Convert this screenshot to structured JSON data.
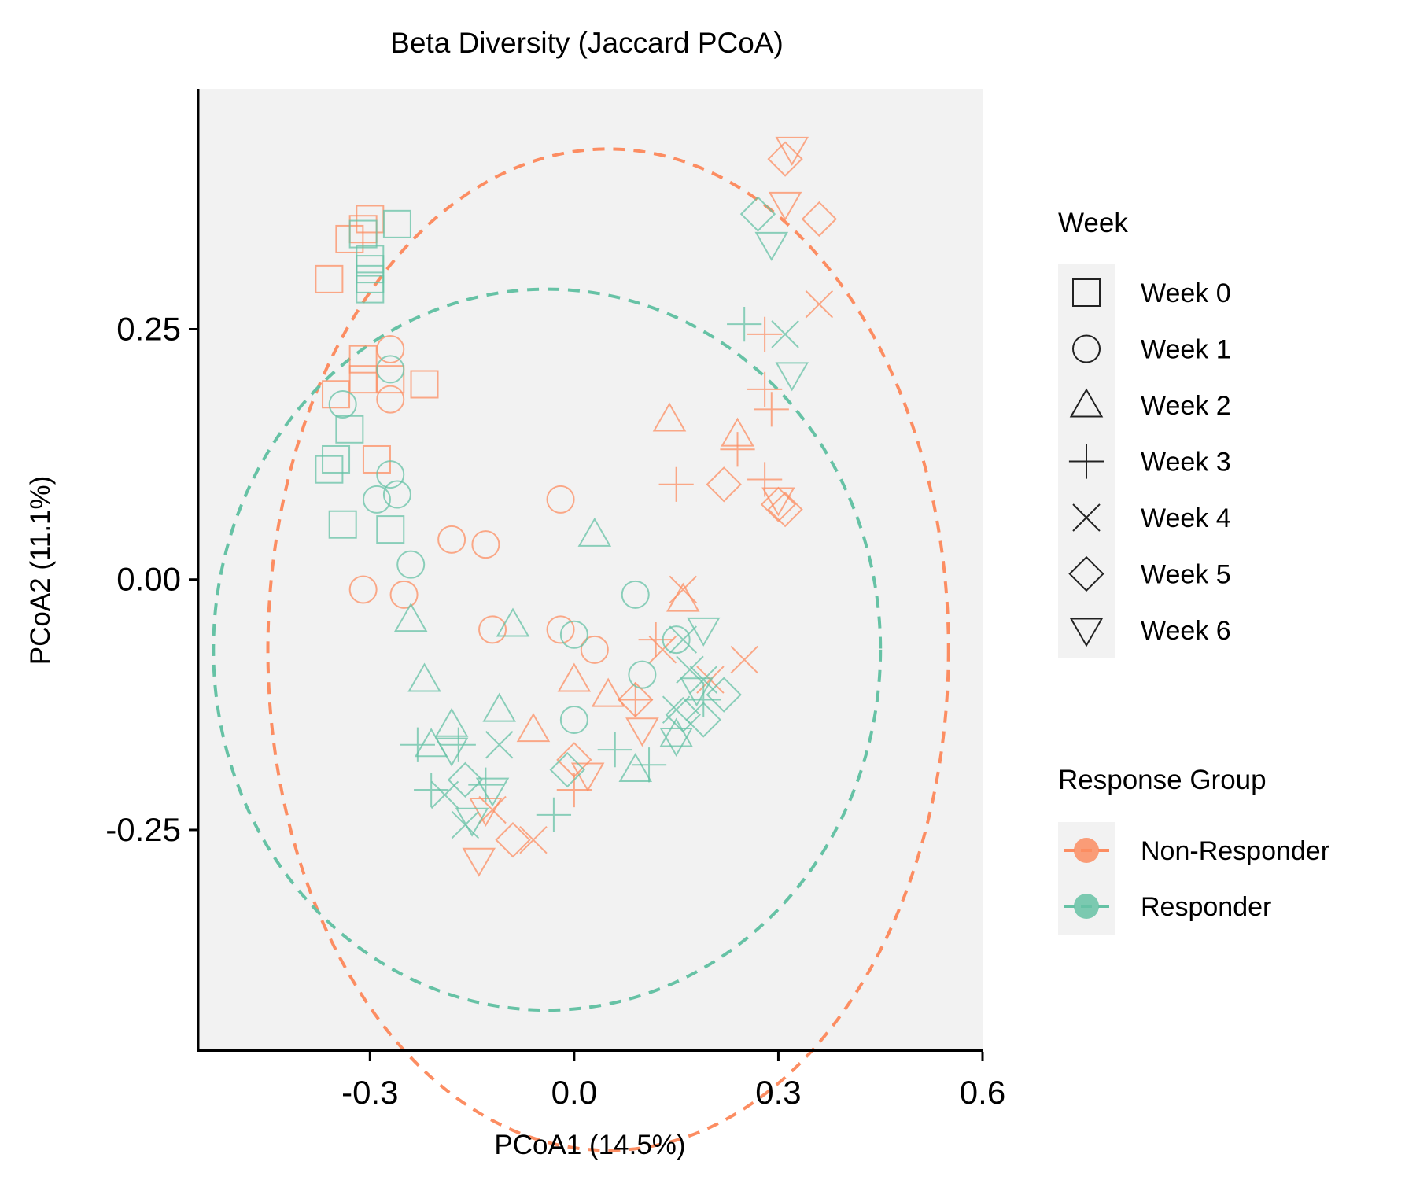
{
  "chart_data": {
    "type": "scatter",
    "title": "Beta Diversity (Jaccard PCoA)",
    "xlabel": "PCoA1 (14.5%)",
    "ylabel": "PCoA2 (11.1%)",
    "xlim": [
      -0.55,
      0.6
    ],
    "ylim": [
      -0.47,
      0.49
    ],
    "x_ticks": [
      -0.3,
      0.0,
      0.3,
      0.6
    ],
    "x_tick_labels": [
      "-0.3",
      "0.0",
      "0.3",
      "0.6"
    ],
    "y_ticks": [
      -0.25,
      0.0,
      0.25
    ],
    "y_tick_labels": [
      "-0.25",
      "0.00",
      "0.25"
    ],
    "grid": false,
    "panel_background": "#f2f2f2",
    "legend_placement": "right",
    "legends": {
      "week": {
        "title": "Week",
        "entries": [
          {
            "label": "Week 0",
            "shape": "square"
          },
          {
            "label": "Week 1",
            "shape": "circle"
          },
          {
            "label": "Week 2",
            "shape": "triangle-up"
          },
          {
            "label": "Week 3",
            "shape": "plus"
          },
          {
            "label": "Week 4",
            "shape": "cross"
          },
          {
            "label": "Week 5",
            "shape": "diamond"
          },
          {
            "label": "Week 6",
            "shape": "triangle-down"
          }
        ]
      },
      "group": {
        "title": "Response Group",
        "entries": [
          {
            "label": "Non-Responder",
            "color": "#fc8d62"
          },
          {
            "label": "Responder",
            "color": "#66c2a5"
          }
        ]
      }
    },
    "ellipses": [
      {
        "group": "Non-Responder",
        "center": [
          0.05,
          -0.07
        ],
        "rx": 0.5,
        "ry": 0.5,
        "color": "#fc8d62",
        "style": "dashed"
      },
      {
        "group": "Responder",
        "center": [
          -0.04,
          -0.07
        ],
        "rx": 0.49,
        "ry": 0.36,
        "color": "#66c2a5",
        "style": "dashed"
      }
    ],
    "series": [
      {
        "name": "Non-Responder",
        "color": "#fc8d62",
        "points": [
          [
            -0.31,
            0.35,
            0
          ],
          [
            -0.3,
            0.36,
            0
          ],
          [
            -0.33,
            0.34,
            0
          ],
          [
            -0.36,
            0.3,
            0
          ],
          [
            -0.31,
            0.22,
            0
          ],
          [
            -0.31,
            0.2,
            0
          ],
          [
            -0.27,
            0.2,
            0
          ],
          [
            -0.22,
            0.195,
            0
          ],
          [
            -0.35,
            0.185,
            0
          ],
          [
            -0.29,
            0.12,
            0
          ],
          [
            -0.27,
            0.23,
            1
          ],
          [
            -0.27,
            0.18,
            1
          ],
          [
            -0.31,
            -0.01,
            1
          ],
          [
            -0.25,
            -0.015,
            1
          ],
          [
            -0.18,
            0.04,
            1
          ],
          [
            -0.13,
            0.035,
            1
          ],
          [
            -0.12,
            -0.05,
            1
          ],
          [
            -0.02,
            0.08,
            1
          ],
          [
            -0.02,
            -0.05,
            1
          ],
          [
            0.03,
            -0.07,
            1
          ],
          [
            0.14,
            0.16,
            2
          ],
          [
            0.24,
            0.145,
            2
          ],
          [
            0.0,
            -0.1,
            2
          ],
          [
            0.05,
            -0.115,
            2
          ],
          [
            -0.06,
            -0.15,
            2
          ],
          [
            0.16,
            -0.02,
            2
          ],
          [
            0.15,
            0.095,
            3
          ],
          [
            0.28,
            0.245,
            3
          ],
          [
            0.28,
            0.19,
            3
          ],
          [
            0.29,
            0.17,
            3
          ],
          [
            0.28,
            0.1,
            3
          ],
          [
            0.24,
            0.13,
            3
          ],
          [
            0.0,
            -0.21,
            3
          ],
          [
            0.12,
            -0.06,
            3
          ],
          [
            0.09,
            -0.12,
            3
          ],
          [
            0.36,
            0.275,
            4
          ],
          [
            0.16,
            -0.01,
            4
          ],
          [
            0.25,
            -0.08,
            4
          ],
          [
            0.2,
            -0.1,
            4
          ],
          [
            0.13,
            -0.07,
            4
          ],
          [
            -0.06,
            -0.26,
            4
          ],
          [
            -0.12,
            -0.23,
            4
          ],
          [
            0.31,
            0.42,
            5
          ],
          [
            0.36,
            0.36,
            5
          ],
          [
            0.22,
            0.095,
            5
          ],
          [
            0.3,
            0.075,
            5
          ],
          [
            0.31,
            0.07,
            5
          ],
          [
            0.09,
            -0.12,
            5
          ],
          [
            0.0,
            -0.18,
            5
          ],
          [
            -0.09,
            -0.26,
            5
          ],
          [
            0.32,
            0.43,
            6
          ],
          [
            0.31,
            0.375,
            6
          ],
          [
            0.3,
            0.08,
            6
          ],
          [
            0.1,
            -0.15,
            6
          ],
          [
            -0.14,
            -0.28,
            6
          ],
          [
            0.02,
            -0.195,
            6
          ],
          [
            -0.13,
            -0.23,
            6
          ]
        ]
      },
      {
        "name": "Responder",
        "color": "#66c2a5",
        "points": [
          [
            -0.26,
            0.355,
            0
          ],
          [
            -0.31,
            0.345,
            0
          ],
          [
            -0.3,
            0.32,
            0
          ],
          [
            -0.3,
            0.31,
            0
          ],
          [
            -0.3,
            0.3,
            0
          ],
          [
            -0.3,
            0.29,
            0
          ],
          [
            -0.35,
            0.12,
            0
          ],
          [
            -0.36,
            0.11,
            0
          ],
          [
            -0.33,
            0.15,
            0
          ],
          [
            -0.34,
            0.055,
            0
          ],
          [
            -0.27,
            0.05,
            0
          ],
          [
            -0.27,
            0.21,
            1
          ],
          [
            -0.34,
            0.175,
            1
          ],
          [
            -0.27,
            0.105,
            1
          ],
          [
            -0.29,
            0.08,
            1
          ],
          [
            -0.26,
            0.085,
            1
          ],
          [
            -0.24,
            0.015,
            1
          ],
          [
            0.09,
            -0.015,
            1
          ],
          [
            0.0,
            -0.055,
            1
          ],
          [
            0.1,
            -0.095,
            1
          ],
          [
            0.0,
            -0.14,
            1
          ],
          [
            0.15,
            -0.06,
            1
          ],
          [
            -0.24,
            -0.04,
            2
          ],
          [
            -0.22,
            -0.1,
            2
          ],
          [
            -0.11,
            -0.13,
            2
          ],
          [
            -0.09,
            -0.045,
            2
          ],
          [
            0.03,
            0.045,
            2
          ],
          [
            -0.21,
            -0.165,
            2
          ],
          [
            -0.18,
            -0.145,
            2
          ],
          [
            0.09,
            -0.19,
            2
          ],
          [
            0.15,
            -0.155,
            2
          ],
          [
            0.25,
            0.255,
            3
          ],
          [
            -0.23,
            -0.165,
            3
          ],
          [
            -0.21,
            -0.21,
            3
          ],
          [
            -0.17,
            -0.165,
            3
          ],
          [
            -0.13,
            -0.205,
            3
          ],
          [
            0.06,
            -0.17,
            3
          ],
          [
            -0.03,
            -0.235,
            3
          ],
          [
            0.11,
            -0.185,
            3
          ],
          [
            0.19,
            -0.12,
            3
          ],
          [
            0.31,
            0.245,
            4
          ],
          [
            -0.11,
            -0.165,
            4
          ],
          [
            -0.19,
            -0.215,
            4
          ],
          [
            -0.16,
            -0.245,
            4
          ],
          [
            0.16,
            -0.06,
            4
          ],
          [
            0.17,
            -0.09,
            4
          ],
          [
            0.19,
            -0.1,
            4
          ],
          [
            0.15,
            -0.13,
            4
          ],
          [
            0.27,
            0.365,
            5
          ],
          [
            -0.01,
            -0.19,
            5
          ],
          [
            -0.16,
            -0.2,
            5
          ],
          [
            0.16,
            -0.135,
            5
          ],
          [
            0.19,
            -0.14,
            5
          ],
          [
            0.22,
            -0.115,
            5
          ],
          [
            0.29,
            0.335,
            6
          ],
          [
            0.32,
            0.205,
            6
          ],
          [
            -0.15,
            -0.24,
            6
          ],
          [
            -0.18,
            -0.17,
            6
          ],
          [
            -0.12,
            -0.21,
            6
          ],
          [
            0.15,
            -0.16,
            6
          ],
          [
            0.19,
            -0.05,
            6
          ],
          [
            0.18,
            -0.11,
            6
          ]
        ]
      }
    ]
  }
}
